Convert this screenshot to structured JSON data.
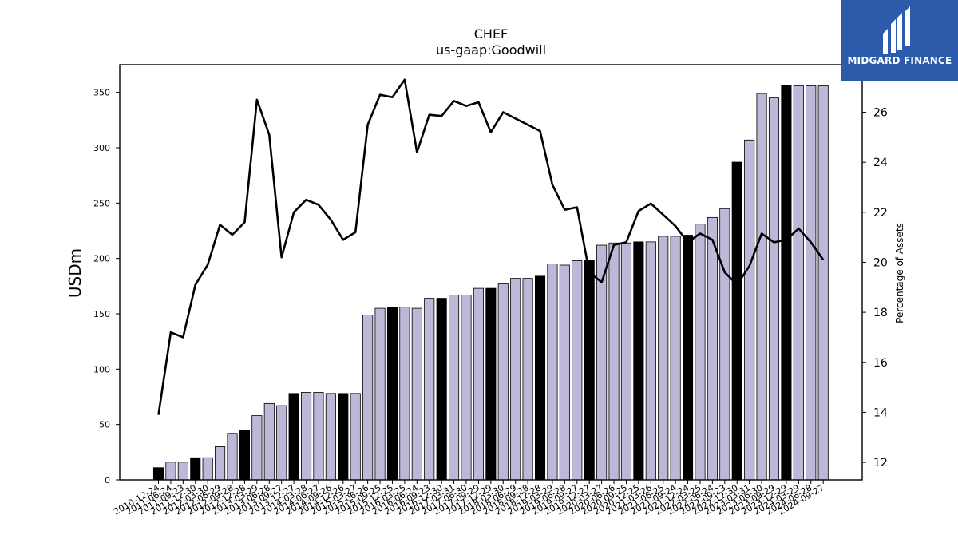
{
  "brand": {
    "name": "MIDGARD FINANCE",
    "icon": "midgard-logo-icon",
    "bg": "#2d5bab"
  },
  "chart_data": {
    "type": "bar",
    "title": "CHEF",
    "subtitle": "us-gaap:Goodwill",
    "ylabel": "USDm",
    "y2label": "Percentage of Assets",
    "ylim": [
      0,
      375
    ],
    "y2lim": [
      11.3,
      27.9
    ],
    "yticks": [
      0,
      50,
      100,
      150,
      200,
      250,
      300,
      350
    ],
    "y2ticks": [
      12,
      14,
      16,
      18,
      20,
      22,
      24,
      26
    ],
    "colors": {
      "quarter": "#bcb8d8",
      "year_end": "#000000",
      "line": "#000000"
    },
    "categories": [
      "2010-12-24",
      "2011-06-24",
      "2011-09-23",
      "2011-12-30",
      "2012-03-30",
      "2012-06-29",
      "2012-09-28",
      "2012-12-28",
      "2013-03-29",
      "2013-06-28",
      "2013-09-27",
      "2013-12-27",
      "2014-03-28",
      "2014-06-27",
      "2014-09-26",
      "2014-12-26",
      "2015-03-27",
      "2015-06-26",
      "2015-09-25",
      "2015-12-25",
      "2016-03-25",
      "2016-06-24",
      "2016-09-23",
      "2016-12-30",
      "2017-03-31",
      "2017-06-30",
      "2017-09-29",
      "2017-12-29",
      "2018-03-30",
      "2018-06-29",
      "2018-09-28",
      "2018-12-28",
      "2019-03-29",
      "2019-06-28",
      "2019-09-27",
      "2019-12-27",
      "2020-03-27",
      "2020-06-26",
      "2020-09-25",
      "2020-12-25",
      "2021-03-26",
      "2021-06-25",
      "2021-09-24",
      "2021-12-24",
      "2022-03-25",
      "2022-06-24",
      "2022-09-23",
      "2022-12-30",
      "2023-03-31",
      "2023-06-30",
      "2023-09-29",
      "2023-12-29",
      "2024-03-29",
      "2024-06-28",
      "2024-09-27"
    ],
    "values": [
      11,
      16,
      16,
      20,
      20,
      30,
      42,
      45,
      58,
      69,
      67,
      78,
      79,
      79,
      78,
      78,
      78,
      149,
      155,
      156,
      156,
      155,
      164,
      164,
      167,
      167,
      173,
      173,
      177,
      182,
      182,
      184,
      195,
      194,
      198,
      198,
      212,
      214,
      214,
      215,
      215,
      220,
      220,
      221,
      231,
      237,
      245,
      287,
      307,
      349,
      345,
      356,
      356,
      356,
      356
    ],
    "year_end": [
      true,
      false,
      false,
      true,
      false,
      false,
      false,
      true,
      false,
      false,
      false,
      true,
      false,
      false,
      false,
      true,
      false,
      false,
      false,
      true,
      false,
      false,
      false,
      true,
      false,
      false,
      false,
      true,
      false,
      false,
      false,
      true,
      false,
      false,
      false,
      true,
      false,
      false,
      false,
      true,
      false,
      false,
      false,
      true,
      false,
      false,
      false,
      true,
      false,
      false,
      false,
      true,
      false,
      false,
      false
    ],
    "line_values": [
      13.9,
      17.2,
      17.0,
      19.1,
      19.9,
      21.5,
      21.1,
      21.6,
      26.5,
      25.1,
      20.2,
      22.0,
      22.5,
      22.3,
      21.7,
      20.9,
      21.2,
      25.5,
      26.7,
      26.6,
      27.3,
      24.4,
      25.9,
      25.85,
      26.45,
      26.25,
      26.4,
      25.2,
      26.0,
      25.75,
      25.5,
      25.25,
      23.1,
      22.1,
      22.2,
      19.6,
      19.2,
      20.7,
      20.8,
      22.05,
      22.35,
      21.9,
      21.45,
      20.8,
      21.15,
      20.9,
      19.6,
      19.1,
      19.85,
      21.15,
      20.8,
      20.9,
      21.35,
      20.8,
      20.1
    ]
  }
}
